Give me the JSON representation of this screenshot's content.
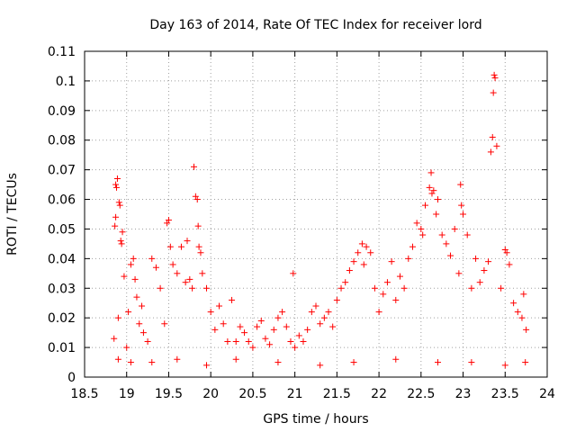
{
  "chart_data": {
    "type": "scatter",
    "title": "Day 163 of 2014, Rate Of TEC Index for receiver lord",
    "xlabel": "GPS time / hours",
    "ylabel": "ROTI / TECUs",
    "xlim": [
      18.5,
      24
    ],
    "ylim": [
      0,
      0.11
    ],
    "xticks": [
      "18.5",
      "19",
      "19.5",
      "20",
      "20.5",
      "21",
      "21.5",
      "22",
      "22.5",
      "23",
      "23.5",
      "24"
    ],
    "yticks": [
      "0",
      "0.01",
      "0.02",
      "0.03",
      "0.04",
      "0.05",
      "0.06",
      "0.07",
      "0.08",
      "0.09",
      "0.1",
      "0.11"
    ],
    "grid": true,
    "marker": "+",
    "color": "#ff0000",
    "series": [
      {
        "name": "ROTI",
        "x": [
          18.85,
          18.86,
          18.87,
          18.87,
          18.88,
          18.89,
          18.9,
          18.91,
          18.92,
          18.93,
          18.94,
          18.95,
          18.97,
          19.0,
          19.02,
          19.05,
          19.08,
          19.1,
          19.12,
          19.15,
          19.18,
          19.2,
          19.25,
          19.3,
          19.35,
          19.4,
          19.45,
          19.48,
          19.5,
          19.52,
          19.55,
          19.6,
          19.65,
          19.7,
          19.72,
          19.75,
          19.78,
          19.8,
          19.82,
          19.84,
          19.85,
          19.86,
          19.88,
          19.9,
          19.95,
          20.0,
          20.05,
          20.1,
          20.15,
          20.2,
          20.25,
          20.3,
          20.35,
          20.4,
          20.45,
          20.5,
          20.55,
          20.6,
          20.65,
          20.7,
          20.75,
          20.8,
          20.85,
          20.9,
          20.95,
          20.98,
          21.0,
          21.05,
          21.1,
          21.15,
          21.2,
          21.25,
          21.3,
          21.35,
          21.4,
          21.45,
          21.5,
          21.55,
          21.6,
          21.65,
          21.7,
          21.75,
          21.8,
          21.82,
          21.85,
          21.9,
          21.95,
          22.0,
          22.05,
          22.1,
          22.15,
          22.2,
          22.25,
          22.3,
          22.35,
          22.4,
          22.45,
          22.5,
          22.52,
          22.55,
          22.6,
          22.62,
          22.63,
          22.65,
          22.68,
          22.7,
          22.75,
          22.8,
          22.85,
          22.9,
          22.95,
          22.97,
          22.98,
          23.0,
          23.05,
          23.1,
          23.15,
          23.2,
          23.25,
          23.3,
          23.33,
          23.35,
          23.36,
          23.37,
          23.38,
          23.4,
          23.45,
          23.5,
          23.52,
          23.55,
          23.6,
          23.65,
          23.7,
          23.72,
          23.75,
          18.9,
          19.05,
          19.3,
          19.6,
          19.95,
          20.3,
          20.8,
          21.3,
          21.7,
          22.2,
          22.7,
          23.1,
          23.5,
          23.74
        ],
        "y": [
          0.013,
          0.051,
          0.054,
          0.065,
          0.064,
          0.067,
          0.02,
          0.059,
          0.058,
          0.046,
          0.045,
          0.049,
          0.034,
          0.01,
          0.022,
          0.038,
          0.04,
          0.033,
          0.027,
          0.018,
          0.024,
          0.015,
          0.012,
          0.04,
          0.037,
          0.03,
          0.018,
          0.052,
          0.053,
          0.044,
          0.038,
          0.035,
          0.044,
          0.032,
          0.046,
          0.033,
          0.03,
          0.071,
          0.061,
          0.06,
          0.051,
          0.044,
          0.042,
          0.035,
          0.03,
          0.022,
          0.016,
          0.024,
          0.018,
          0.012,
          0.026,
          0.012,
          0.017,
          0.015,
          0.012,
          0.01,
          0.017,
          0.019,
          0.013,
          0.011,
          0.016,
          0.02,
          0.022,
          0.017,
          0.012,
          0.035,
          0.01,
          0.014,
          0.012,
          0.016,
          0.022,
          0.024,
          0.018,
          0.02,
          0.022,
          0.017,
          0.026,
          0.03,
          0.032,
          0.036,
          0.039,
          0.042,
          0.045,
          0.038,
          0.044,
          0.042,
          0.03,
          0.022,
          0.028,
          0.032,
          0.039,
          0.026,
          0.034,
          0.03,
          0.04,
          0.044,
          0.052,
          0.05,
          0.048,
          0.058,
          0.064,
          0.069,
          0.062,
          0.063,
          0.055,
          0.06,
          0.048,
          0.045,
          0.041,
          0.05,
          0.035,
          0.065,
          0.058,
          0.055,
          0.048,
          0.03,
          0.04,
          0.032,
          0.036,
          0.039,
          0.076,
          0.081,
          0.096,
          0.102,
          0.101,
          0.078,
          0.03,
          0.043,
          0.042,
          0.038,
          0.025,
          0.022,
          0.02,
          0.028,
          0.016,
          0.006,
          0.005,
          0.005,
          0.006,
          0.004,
          0.006,
          0.005,
          0.004,
          0.005,
          0.006,
          0.005,
          0.005,
          0.004,
          0.005
        ]
      }
    ]
  }
}
